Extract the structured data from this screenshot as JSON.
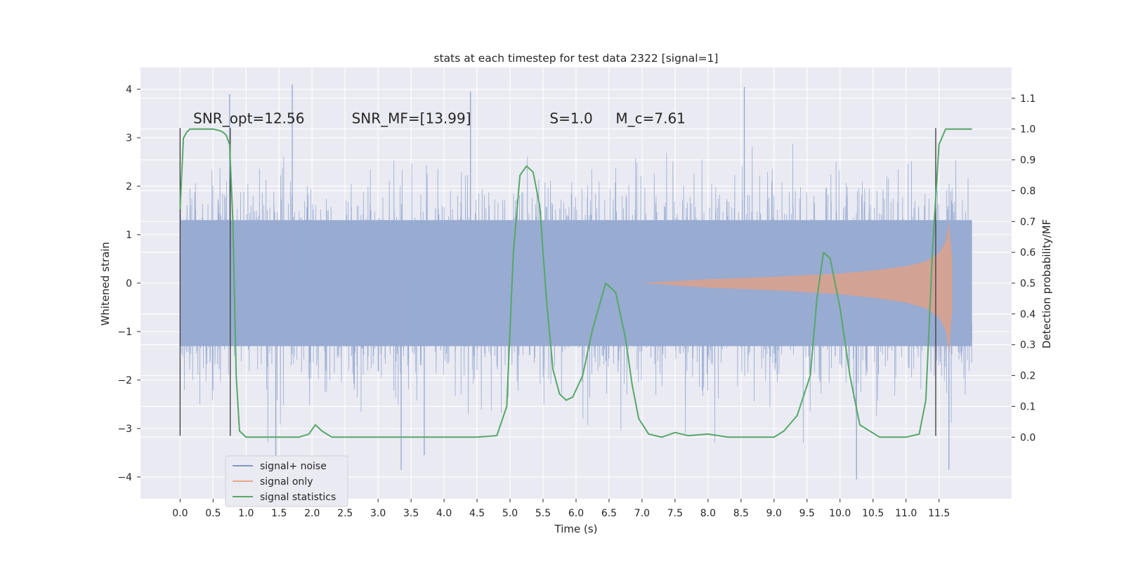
{
  "chart_data": {
    "type": "line",
    "title": "stats at each timestep for test data 2322 [signal=1]",
    "xlabel": "Time (s)",
    "ylabel": "Whitened strain",
    "ylabel_right": "Detection probability/MF",
    "xlim": [
      -0.6,
      12.6
    ],
    "ylim": [
      -4.45,
      4.45
    ],
    "ylim_right": [
      -0.2,
      1.2
    ],
    "x_ticks": [
      "0.0",
      "0.5",
      "1.0",
      "1.5",
      "2.0",
      "2.5",
      "3.0",
      "3.5",
      "4.0",
      "4.5",
      "5.0",
      "5.5",
      "6.0",
      "6.5",
      "7.0",
      "7.5",
      "8.0",
      "8.5",
      "9.0",
      "9.5",
      "10.0",
      "10.5",
      "11.0",
      "11.5"
    ],
    "y_ticks": [
      "4",
      "3",
      "2",
      "1",
      "0",
      "−1",
      "−2",
      "−3",
      "−4"
    ],
    "y_ticks_right": [
      "1.1",
      "1.0",
      "0.9",
      "0.8",
      "0.7",
      "0.6",
      "0.5",
      "0.4",
      "0.3",
      "0.2",
      "0.1",
      "0.0"
    ],
    "grid": true,
    "legend_position": "lower-left",
    "annotations": [
      {
        "text": "SNR_opt=12.56",
        "x": 0.2,
        "y": 3.3
      },
      {
        "text": "SNR_MF=[13.99]",
        "x": 2.6,
        "y": 3.3
      },
      {
        "text": "S=1.0",
        "x": 5.6,
        "y": 3.3
      },
      {
        "text": "M_c=7.61",
        "x": 6.6,
        "y": 3.3
      }
    ],
    "vertical_markers": [
      {
        "x": 0.0,
        "ymin": -3.15,
        "ymax": 3.2
      },
      {
        "x": 0.76,
        "ymin": -3.15,
        "ymax": 3.2
      },
      {
        "x": 11.45,
        "ymin": -3.15,
        "ymax": 3.2
      }
    ],
    "series": [
      {
        "name": "signal+ noise",
        "color": "#4c72b0",
        "x_range": [
          0.0,
          12.0
        ],
        "band_sigma": 1.3,
        "notable_peaks": [
          [
            0.75,
            3.9
          ],
          [
            1.7,
            4.1
          ],
          [
            4.4,
            3.95
          ],
          [
            8.55,
            4.05
          ],
          [
            3.35,
            -3.85
          ],
          [
            10.25,
            -4.05
          ],
          [
            11.65,
            -3.85
          ],
          [
            1.45,
            -3.6
          ],
          [
            3.7,
            -3.55
          ]
        ]
      },
      {
        "name": "signal only",
        "color": "#dd8452",
        "envelope": {
          "x": [
            7.0,
            8.0,
            9.0,
            10.0,
            10.5,
            11.0,
            11.3,
            11.5,
            11.6,
            11.65,
            11.7
          ],
          "y": [
            0.0,
            0.08,
            0.13,
            0.2,
            0.26,
            0.35,
            0.45,
            0.62,
            0.85,
            1.25,
            0.5
          ]
        }
      },
      {
        "name": "signal statistics",
        "color": "#55a868",
        "axis": "right",
        "x": [
          0.0,
          0.05,
          0.1,
          0.15,
          0.2,
          0.3,
          0.4,
          0.5,
          0.6,
          0.65,
          0.7,
          0.75,
          0.8,
          0.85,
          0.9,
          1.0,
          1.5,
          1.8,
          1.95,
          2.05,
          2.15,
          2.3,
          2.5,
          3.0,
          4.0,
          4.5,
          4.8,
          4.95,
          5.05,
          5.15,
          5.25,
          5.35,
          5.45,
          5.55,
          5.65,
          5.75,
          5.85,
          5.95,
          6.1,
          6.25,
          6.45,
          6.6,
          6.75,
          6.85,
          6.95,
          7.1,
          7.3,
          7.5,
          7.7,
          8.0,
          8.3,
          9.0,
          9.15,
          9.35,
          9.55,
          9.65,
          9.75,
          9.85,
          10.0,
          10.15,
          10.3,
          10.6,
          11.0,
          11.2,
          11.3,
          11.4,
          11.5,
          11.6,
          11.8,
          12.0
        ],
        "y": [
          0.74,
          0.97,
          0.99,
          1.0,
          1.0,
          1.0,
          1.0,
          1.0,
          0.995,
          0.99,
          0.98,
          0.95,
          0.7,
          0.2,
          0.02,
          0.0,
          0.0,
          0.0,
          0.01,
          0.04,
          0.02,
          0.0,
          0.0,
          0.0,
          0.0,
          0.0,
          0.005,
          0.1,
          0.6,
          0.85,
          0.88,
          0.86,
          0.75,
          0.45,
          0.22,
          0.14,
          0.12,
          0.13,
          0.2,
          0.35,
          0.5,
          0.47,
          0.32,
          0.17,
          0.06,
          0.01,
          0.0,
          0.015,
          0.005,
          0.01,
          0.0,
          0.0,
          0.02,
          0.07,
          0.2,
          0.45,
          0.6,
          0.58,
          0.42,
          0.2,
          0.04,
          0.0,
          0.0,
          0.01,
          0.12,
          0.6,
          0.95,
          1.0,
          1.0,
          1.0
        ]
      }
    ]
  }
}
